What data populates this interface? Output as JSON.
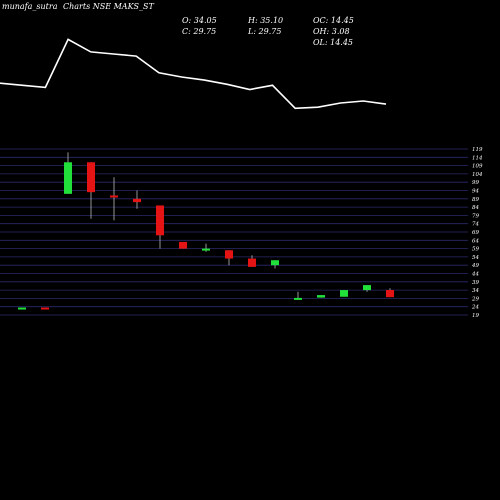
{
  "header": {
    "title": "munafa_sutra",
    "subtitle": "Charts NSE MAKS_ST"
  },
  "stats": {
    "open": "O: 34.05",
    "high": "H: 35.10",
    "close": "C: 29.75",
    "low": "L: 29.75",
    "oc": "OC: 14.45",
    "oh": "OH: 3.08",
    "ol": "OL: 14.45"
  },
  "chart_data": {
    "type": "candlestick",
    "y_ticks": [
      119,
      114,
      109,
      104,
      99,
      94,
      89,
      84,
      79,
      74,
      69,
      64,
      59,
      54,
      49,
      44,
      39,
      34,
      29,
      24,
      19
    ],
    "ylim": [
      19,
      119
    ],
    "grid": true,
    "line_series": [
      124,
      122,
      120,
      166,
      154,
      152,
      150,
      134,
      130,
      127,
      123,
      118,
      122,
      100,
      101,
      105,
      107,
      104
    ],
    "candles": [
      {
        "open": 23.5,
        "close": 23.5,
        "high": 23.5,
        "low": 23.5,
        "color": "green"
      },
      {
        "open": 23.5,
        "close": 23.5,
        "high": 23.5,
        "low": 23.5,
        "color": "red"
      },
      {
        "open": 92,
        "close": 111,
        "high": 117,
        "low": 92,
        "color": "green"
      },
      {
        "open": 111,
        "close": 93,
        "high": 111,
        "low": 77,
        "color": "red"
      },
      {
        "open": 91,
        "close": 90,
        "high": 102,
        "low": 76,
        "color": "red"
      },
      {
        "open": 89,
        "close": 87,
        "high": 94,
        "low": 83,
        "color": "red"
      },
      {
        "open": 85,
        "close": 67,
        "high": 85,
        "low": 59,
        "color": "red"
      },
      {
        "open": 63,
        "close": 59,
        "high": 63,
        "low": 59,
        "color": "red"
      },
      {
        "open": 58,
        "close": 59,
        "high": 62,
        "low": 57,
        "color": "green"
      },
      {
        "open": 58,
        "close": 53,
        "high": 58,
        "low": 49,
        "color": "red"
      },
      {
        "open": 53,
        "close": 48,
        "high": 55,
        "low": 48,
        "color": "red"
      },
      {
        "open": 49,
        "close": 52,
        "high": 52,
        "low": 47,
        "color": "green"
      },
      {
        "open": 29,
        "close": 29.3,
        "high": 33,
        "low": 29,
        "color": "green"
      },
      {
        "open": 29.5,
        "close": 31,
        "high": 31,
        "low": 29.5,
        "color": "green"
      },
      {
        "open": 30,
        "close": 34,
        "high": 34,
        "low": 30,
        "color": "green"
      },
      {
        "open": 34,
        "close": 37,
        "high": 37,
        "low": 33,
        "color": "green"
      },
      {
        "open": 34.05,
        "close": 29.75,
        "high": 35.1,
        "low": 29.75,
        "color": "red"
      }
    ],
    "colors": {
      "up": "#22e03a",
      "down": "#e51414",
      "grid": "#2a2a6a",
      "line": "#ffffff",
      "wick": "#bbbbbb"
    }
  }
}
